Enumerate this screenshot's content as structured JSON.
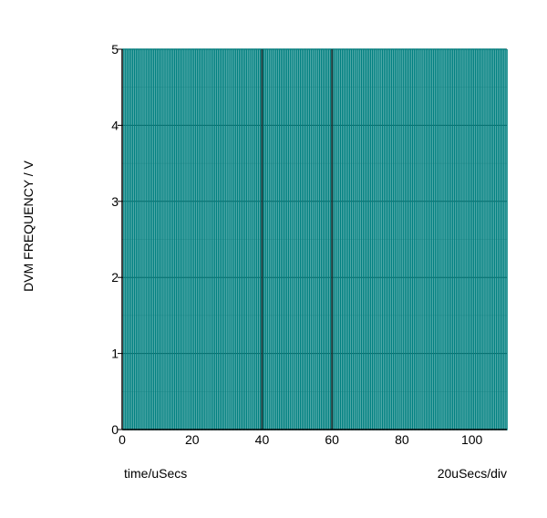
{
  "chart_data": {
    "type": "line",
    "title": "",
    "xlabel": "time/uSecs",
    "ylabel": "DVM FREQUENCY / V",
    "x_scale_note": "20uSecs/div",
    "xlim": [
      0,
      110
    ],
    "ylim": [
      0,
      5
    ],
    "x_ticks": [
      0,
      20,
      40,
      60,
      80,
      100
    ],
    "y_ticks": [
      0,
      1,
      2,
      3,
      4,
      5
    ],
    "grid": true,
    "series": [
      {
        "color": "#008080",
        "style": "square-wave",
        "low": 0,
        "high": 5,
        "period_x": 1.0,
        "x_start": 0,
        "x_end": 110
      }
    ]
  },
  "colors": {
    "signal": "#008080",
    "grid": "#000000",
    "axis": "#000000"
  }
}
